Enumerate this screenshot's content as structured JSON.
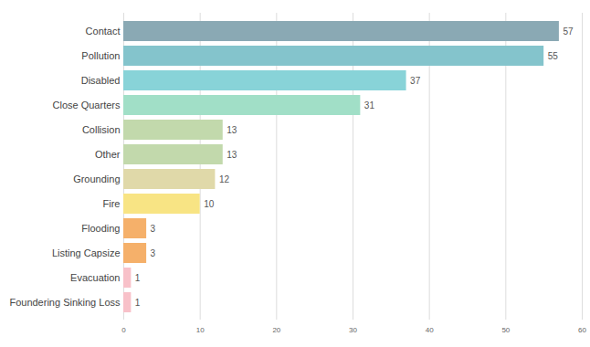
{
  "chart_data": {
    "type": "bar",
    "orientation": "horizontal",
    "categories": [
      "Contact",
      "Pollution",
      "Disabled",
      "Close Quarters",
      "Collision",
      "Other",
      "Grounding",
      "Fire",
      "Flooding",
      "Listing Capsize",
      "Evacuation",
      "Foundering Sinking Loss"
    ],
    "values": [
      57,
      55,
      37,
      31,
      13,
      13,
      12,
      10,
      3,
      3,
      1,
      1
    ],
    "colors": [
      "#8aa9b4",
      "#84c4cc",
      "#88d3d8",
      "#a1dfc7",
      "#c2d9ac",
      "#c2d9ac",
      "#e0d9a9",
      "#f8e484",
      "#f5b06a",
      "#f5b06a",
      "#f8c1c9",
      "#f8c1c9"
    ],
    "xlim": [
      0,
      60
    ],
    "xticks": [
      0,
      10,
      20,
      30,
      40,
      50,
      60
    ],
    "grid": true,
    "data_labels": true
  }
}
